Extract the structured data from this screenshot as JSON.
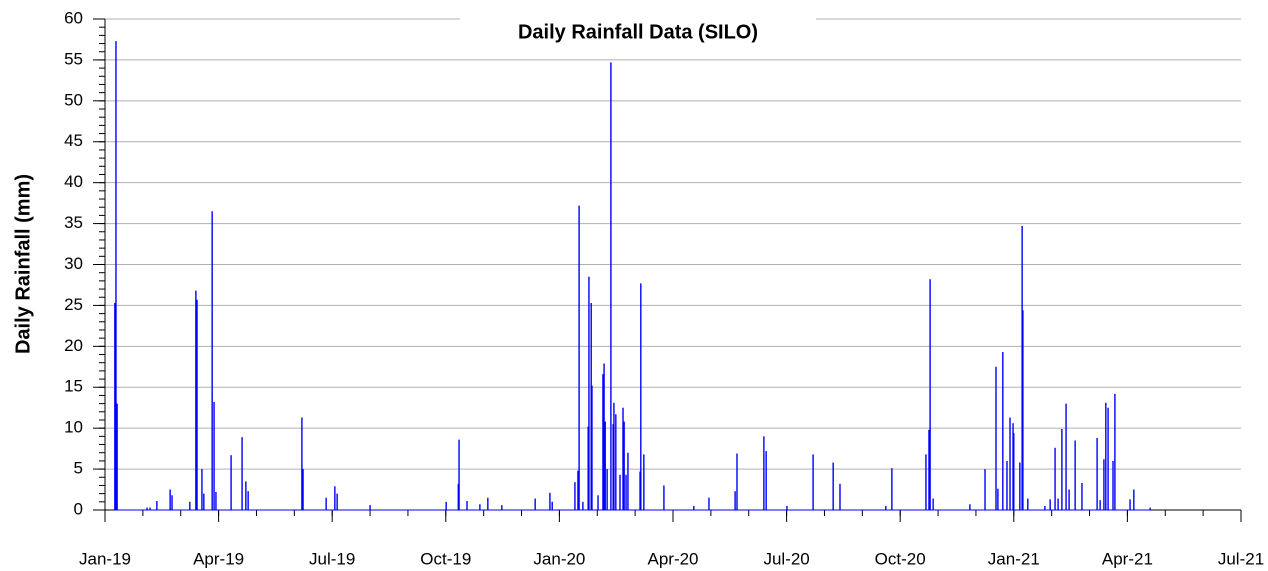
{
  "chart_data": {
    "type": "bar",
    "title": "Daily Rainfall Data (SILO)",
    "y_label": "Daily Rainfall (mm)",
    "color": "#0000ff",
    "grid": true,
    "xlim": [
      0,
      30
    ],
    "xticks": [
      {
        "value": 0,
        "label": "Jan-19"
      },
      {
        "value": 3,
        "label": "Apr-19"
      },
      {
        "value": 6,
        "label": "Jul-19"
      },
      {
        "value": 9,
        "label": "Oct-19"
      },
      {
        "value": 12,
        "label": "Jan-20"
      },
      {
        "value": 15,
        "label": "Apr-20"
      },
      {
        "value": 18,
        "label": "Jul-20"
      },
      {
        "value": 21,
        "label": "Oct-20"
      },
      {
        "value": 24,
        "label": "Jan-21"
      },
      {
        "value": 27,
        "label": "Apr-21"
      },
      {
        "value": 30,
        "label": "Jul-21"
      }
    ],
    "ylim": [
      0,
      60
    ],
    "yticks": [
      0,
      5,
      10,
      15,
      20,
      25,
      30,
      35,
      40,
      45,
      50,
      55,
      60
    ],
    "x": [
      0.26,
      0.29,
      0.32,
      1.11,
      1.19,
      1.37,
      1.72,
      1.77,
      2.24,
      2.4,
      2.43,
      2.56,
      2.61,
      2.83,
      2.88,
      2.93,
      3.33,
      3.62,
      3.72,
      3.78,
      5.2,
      5.23,
      5.84,
      6.07,
      6.13,
      7.0,
      9.01,
      9.33,
      9.35,
      9.56,
      9.9,
      10.11,
      10.48,
      11.36,
      11.75,
      11.81,
      12.41,
      12.49,
      12.52,
      12.62,
      12.76,
      12.78,
      12.84,
      12.86,
      13.02,
      13.15,
      13.18,
      13.21,
      13.26,
      13.36,
      13.42,
      13.44,
      13.49,
      13.6,
      13.68,
      13.71,
      13.76,
      13.81,
      14.13,
      14.15,
      14.23,
      14.76,
      15.55,
      15.95,
      16.64,
      16.69,
      17.4,
      17.46,
      18.01,
      18.7,
      19.23,
      19.41,
      20.62,
      20.78,
      21.68,
      21.76,
      21.79,
      21.87,
      22.84,
      23.24,
      23.53,
      23.58,
      23.71,
      23.82,
      23.9,
      23.98,
      24.0,
      24.16,
      24.22,
      24.24,
      24.37,
      24.82,
      24.96,
      25.09,
      25.17,
      25.27,
      25.38,
      25.46,
      25.62,
      25.8,
      26.2,
      26.28,
      26.38,
      26.43,
      26.49,
      26.62,
      26.67,
      27.07,
      27.17,
      27.6
    ],
    "values": [
      25.3,
      57.3,
      13,
      0.3,
      0.3,
      1.1,
      2.5,
      1.8,
      1,
      26.8,
      25.7,
      5,
      2,
      36.5,
      13.2,
      2.2,
      6.7,
      8.9,
      3.5,
      2.3,
      11.3,
      5,
      1.5,
      2.9,
      2,
      0.6,
      1,
      3.2,
      8.6,
      1.1,
      0.7,
      1.5,
      0.6,
      1.4,
      2.1,
      1,
      3.4,
      4.8,
      37.2,
      1,
      10.2,
      28.5,
      25.3,
      15.2,
      1.8,
      16.6,
      17.9,
      10.8,
      5,
      54.7,
      10.5,
      13.1,
      11.7,
      4.3,
      12.5,
      10.8,
      4.3,
      7,
      4.7,
      27.7,
      6.8,
      3,
      0.5,
      1.5,
      2.3,
      6.9,
      9,
      7.2,
      0.5,
      6.8,
      5.8,
      3.2,
      0.5,
      5.1,
      6.8,
      9.8,
      28.2,
      1.4,
      0.7,
      5,
      17.5,
      2.6,
      19.3,
      6,
      11.3,
      10.6,
      9.4,
      5.8,
      34.7,
      24.4,
      1.4,
      0.5,
      1.3,
      7.6,
      1.4,
      9.9,
      13,
      2.5,
      8.5,
      3.3,
      8.8,
      1.2,
      6.2,
      13.1,
      12.5,
      6,
      14.2,
      1.3,
      2.5,
      0.3
    ]
  }
}
